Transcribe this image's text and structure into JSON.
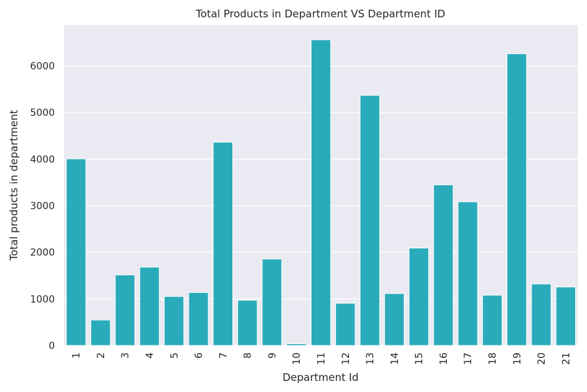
{
  "chart_data": {
    "type": "bar",
    "title": "Total Products in Department VS Department ID",
    "xlabel": "Department Id",
    "ylabel": "Total products in department",
    "categories": [
      "1",
      "2",
      "3",
      "4",
      "5",
      "6",
      "7",
      "8",
      "9",
      "10",
      "11",
      "12",
      "13",
      "14",
      "15",
      "16",
      "17",
      "18",
      "19",
      "20",
      "21"
    ],
    "values": [
      4007,
      548,
      1516,
      1683,
      1054,
      1139,
      4365,
      972,
      1858,
      38,
      6563,
      907,
      5371,
      1116,
      2092,
      3449,
      3085,
      1081,
      6264,
      1322,
      1257
    ],
    "ylim": [
      0,
      6880
    ],
    "yticks": [
      0,
      1000,
      2000,
      3000,
      4000,
      5000,
      6000
    ],
    "grid": true,
    "bar_color": "#2aabbb",
    "plot_background": "#eaeaf2",
    "grid_color": "#ffffff"
  }
}
